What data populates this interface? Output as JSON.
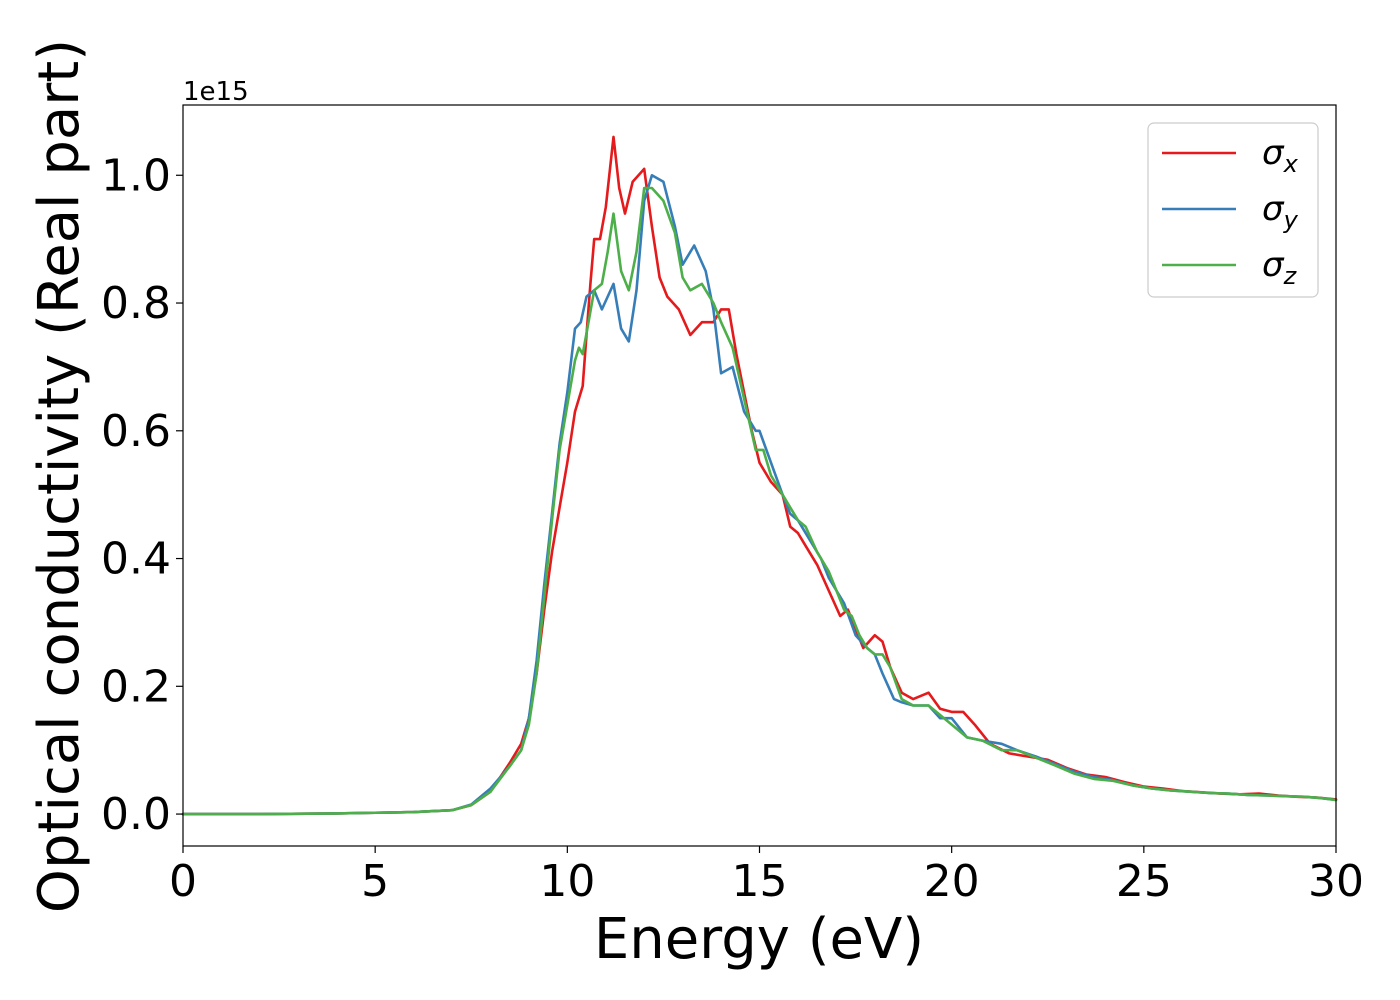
{
  "chart_data": {
    "type": "line",
    "xlabel": "Energy (eV)",
    "ylabel": "Optical conductivity (Real part)",
    "y_offset_label": "1e15",
    "xlim": [
      0,
      30
    ],
    "ylim": [
      -0.05,
      1.11
    ],
    "x_ticks": [
      0,
      5,
      10,
      15,
      20,
      25,
      30
    ],
    "y_ticks": [
      0.0,
      0.2,
      0.4,
      0.6,
      0.8,
      1.0
    ],
    "x_tick_labels": [
      "0",
      "5",
      "10",
      "15",
      "20",
      "25",
      "30"
    ],
    "y_tick_labels": [
      "0.0",
      "0.2",
      "0.4",
      "0.6",
      "0.8",
      "1.0"
    ],
    "grid": false,
    "legend_position": "top-right",
    "series": [
      {
        "name": "σx",
        "legend_symbol": "σ",
        "legend_subscript": "x",
        "color": "#e41a1c",
        "points": [
          [
            0,
            0
          ],
          [
            2,
            0
          ],
          [
            4,
            0.001
          ],
          [
            6,
            0.003
          ],
          [
            7,
            0.006
          ],
          [
            7.5,
            0.014
          ],
          [
            8,
            0.035
          ],
          [
            8.5,
            0.08
          ],
          [
            8.8,
            0.11
          ],
          [
            9.0,
            0.15
          ],
          [
            9.2,
            0.22
          ],
          [
            9.4,
            0.32
          ],
          [
            9.6,
            0.41
          ],
          [
            9.8,
            0.48
          ],
          [
            10.0,
            0.55
          ],
          [
            10.2,
            0.63
          ],
          [
            10.4,
            0.67
          ],
          [
            10.5,
            0.75
          ],
          [
            10.6,
            0.83
          ],
          [
            10.7,
            0.9
          ],
          [
            10.85,
            0.9
          ],
          [
            11.0,
            0.95
          ],
          [
            11.2,
            1.06
          ],
          [
            11.35,
            0.98
          ],
          [
            11.5,
            0.94
          ],
          [
            11.7,
            0.99
          ],
          [
            12.0,
            1.01
          ],
          [
            12.2,
            0.92
          ],
          [
            12.4,
            0.84
          ],
          [
            12.6,
            0.81
          ],
          [
            12.9,
            0.79
          ],
          [
            13.2,
            0.75
          ],
          [
            13.5,
            0.77
          ],
          [
            13.8,
            0.77
          ],
          [
            14.0,
            0.79
          ],
          [
            14.2,
            0.79
          ],
          [
            14.4,
            0.72
          ],
          [
            14.6,
            0.66
          ],
          [
            14.8,
            0.6
          ],
          [
            15.0,
            0.55
          ],
          [
            15.3,
            0.52
          ],
          [
            15.6,
            0.5
          ],
          [
            15.8,
            0.45
          ],
          [
            16.0,
            0.44
          ],
          [
            16.2,
            0.42
          ],
          [
            16.5,
            0.39
          ],
          [
            16.8,
            0.35
          ],
          [
            17.1,
            0.31
          ],
          [
            17.3,
            0.32
          ],
          [
            17.5,
            0.29
          ],
          [
            17.7,
            0.26
          ],
          [
            18.0,
            0.28
          ],
          [
            18.2,
            0.27
          ],
          [
            18.4,
            0.23
          ],
          [
            18.7,
            0.19
          ],
          [
            19.0,
            0.18
          ],
          [
            19.4,
            0.19
          ],
          [
            19.7,
            0.165
          ],
          [
            20.0,
            0.16
          ],
          [
            20.3,
            0.16
          ],
          [
            20.6,
            0.14
          ],
          [
            21.0,
            0.11
          ],
          [
            21.5,
            0.095
          ],
          [
            22.0,
            0.09
          ],
          [
            22.5,
            0.085
          ],
          [
            23.0,
            0.072
          ],
          [
            23.5,
            0.062
          ],
          [
            24.0,
            0.058
          ],
          [
            24.5,
            0.05
          ],
          [
            25.0,
            0.043
          ],
          [
            25.5,
            0.04
          ],
          [
            26.0,
            0.036
          ],
          [
            26.5,
            0.034
          ],
          [
            27.0,
            0.032
          ],
          [
            27.5,
            0.031
          ],
          [
            28.0,
            0.032
          ],
          [
            28.5,
            0.029
          ],
          [
            29.0,
            0.027
          ],
          [
            29.5,
            0.026
          ],
          [
            30.0,
            0.023
          ]
        ]
      },
      {
        "name": "σy",
        "legend_symbol": "σ",
        "legend_subscript": "y",
        "color": "#377eb8",
        "points": [
          [
            0,
            0
          ],
          [
            2,
            0
          ],
          [
            4,
            0.001
          ],
          [
            6,
            0.003
          ],
          [
            7,
            0.006
          ],
          [
            7.5,
            0.015
          ],
          [
            8,
            0.04
          ],
          [
            8.5,
            0.075
          ],
          [
            8.8,
            0.1
          ],
          [
            9.0,
            0.15
          ],
          [
            9.2,
            0.24
          ],
          [
            9.4,
            0.36
          ],
          [
            9.6,
            0.47
          ],
          [
            9.8,
            0.58
          ],
          [
            10.0,
            0.66
          ],
          [
            10.2,
            0.76
          ],
          [
            10.35,
            0.77
          ],
          [
            10.5,
            0.81
          ],
          [
            10.7,
            0.82
          ],
          [
            10.9,
            0.79
          ],
          [
            11.05,
            0.81
          ],
          [
            11.2,
            0.83
          ],
          [
            11.4,
            0.76
          ],
          [
            11.6,
            0.74
          ],
          [
            11.8,
            0.82
          ],
          [
            12.0,
            0.96
          ],
          [
            12.2,
            1.0
          ],
          [
            12.5,
            0.99
          ],
          [
            12.8,
            0.92
          ],
          [
            13.0,
            0.86
          ],
          [
            13.3,
            0.89
          ],
          [
            13.6,
            0.85
          ],
          [
            13.8,
            0.79
          ],
          [
            14.0,
            0.69
          ],
          [
            14.3,
            0.7
          ],
          [
            14.6,
            0.63
          ],
          [
            14.9,
            0.6
          ],
          [
            15.0,
            0.6
          ],
          [
            15.3,
            0.55
          ],
          [
            15.6,
            0.5
          ],
          [
            15.8,
            0.47
          ],
          [
            16.0,
            0.46
          ],
          [
            16.3,
            0.43
          ],
          [
            16.6,
            0.4
          ],
          [
            16.8,
            0.37
          ],
          [
            17.0,
            0.35
          ],
          [
            17.2,
            0.33
          ],
          [
            17.5,
            0.28
          ],
          [
            17.8,
            0.26
          ],
          [
            18.0,
            0.25
          ],
          [
            18.2,
            0.22
          ],
          [
            18.5,
            0.18
          ],
          [
            18.7,
            0.175
          ],
          [
            19.0,
            0.17
          ],
          [
            19.4,
            0.17
          ],
          [
            19.7,
            0.15
          ],
          [
            20.0,
            0.15
          ],
          [
            20.4,
            0.12
          ],
          [
            20.8,
            0.115
          ],
          [
            21.3,
            0.11
          ],
          [
            21.7,
            0.1
          ],
          [
            22.2,
            0.09
          ],
          [
            22.7,
            0.078
          ],
          [
            23.2,
            0.066
          ],
          [
            23.7,
            0.058
          ],
          [
            24.2,
            0.053
          ],
          [
            24.7,
            0.045
          ],
          [
            25.2,
            0.04
          ],
          [
            25.7,
            0.037
          ],
          [
            26.2,
            0.035
          ],
          [
            26.7,
            0.033
          ],
          [
            27.2,
            0.032
          ],
          [
            27.7,
            0.03
          ],
          [
            28.2,
            0.029
          ],
          [
            28.7,
            0.028
          ],
          [
            29.2,
            0.027
          ],
          [
            29.6,
            0.025
          ],
          [
            30.0,
            0.022
          ]
        ]
      },
      {
        "name": "σz",
        "legend_symbol": "σ",
        "legend_subscript": "z",
        "color": "#4daf4a",
        "points": [
          [
            0,
            0
          ],
          [
            2,
            0
          ],
          [
            4,
            0.001
          ],
          [
            6,
            0.003
          ],
          [
            7,
            0.006
          ],
          [
            7.5,
            0.014
          ],
          [
            8,
            0.035
          ],
          [
            8.5,
            0.075
          ],
          [
            8.8,
            0.1
          ],
          [
            9.0,
            0.14
          ],
          [
            9.2,
            0.22
          ],
          [
            9.4,
            0.34
          ],
          [
            9.6,
            0.46
          ],
          [
            9.8,
            0.57
          ],
          [
            10.0,
            0.64
          ],
          [
            10.2,
            0.71
          ],
          [
            10.3,
            0.73
          ],
          [
            10.4,
            0.72
          ],
          [
            10.55,
            0.77
          ],
          [
            10.7,
            0.82
          ],
          [
            10.9,
            0.83
          ],
          [
            11.05,
            0.88
          ],
          [
            11.2,
            0.94
          ],
          [
            11.4,
            0.85
          ],
          [
            11.6,
            0.82
          ],
          [
            11.8,
            0.88
          ],
          [
            12.0,
            0.98
          ],
          [
            12.2,
            0.98
          ],
          [
            12.5,
            0.96
          ],
          [
            12.8,
            0.91
          ],
          [
            13.0,
            0.84
          ],
          [
            13.2,
            0.82
          ],
          [
            13.5,
            0.83
          ],
          [
            13.8,
            0.8
          ],
          [
            14.0,
            0.77
          ],
          [
            14.3,
            0.73
          ],
          [
            14.6,
            0.65
          ],
          [
            14.9,
            0.57
          ],
          [
            15.1,
            0.57
          ],
          [
            15.3,
            0.53
          ],
          [
            15.6,
            0.5
          ],
          [
            15.8,
            0.48
          ],
          [
            16.0,
            0.46
          ],
          [
            16.2,
            0.45
          ],
          [
            16.5,
            0.41
          ],
          [
            16.8,
            0.38
          ],
          [
            17.0,
            0.35
          ],
          [
            17.2,
            0.32
          ],
          [
            17.4,
            0.31
          ],
          [
            17.6,
            0.28
          ],
          [
            17.8,
            0.26
          ],
          [
            18.0,
            0.25
          ],
          [
            18.2,
            0.25
          ],
          [
            18.4,
            0.23
          ],
          [
            18.7,
            0.18
          ],
          [
            19.0,
            0.17
          ],
          [
            19.4,
            0.17
          ],
          [
            19.7,
            0.155
          ],
          [
            20.0,
            0.14
          ],
          [
            20.4,
            0.12
          ],
          [
            20.8,
            0.115
          ],
          [
            21.3,
            0.1
          ],
          [
            21.7,
            0.1
          ],
          [
            22.2,
            0.088
          ],
          [
            22.7,
            0.076
          ],
          [
            23.2,
            0.063
          ],
          [
            23.7,
            0.055
          ],
          [
            24.2,
            0.052
          ],
          [
            24.7,
            0.045
          ],
          [
            25.2,
            0.04
          ],
          [
            25.7,
            0.037
          ],
          [
            26.2,
            0.035
          ],
          [
            26.7,
            0.033
          ],
          [
            27.2,
            0.032
          ],
          [
            27.7,
            0.03
          ],
          [
            28.2,
            0.029
          ],
          [
            28.7,
            0.028
          ],
          [
            29.2,
            0.027
          ],
          [
            29.6,
            0.025
          ],
          [
            30.0,
            0.022
          ]
        ]
      }
    ]
  }
}
